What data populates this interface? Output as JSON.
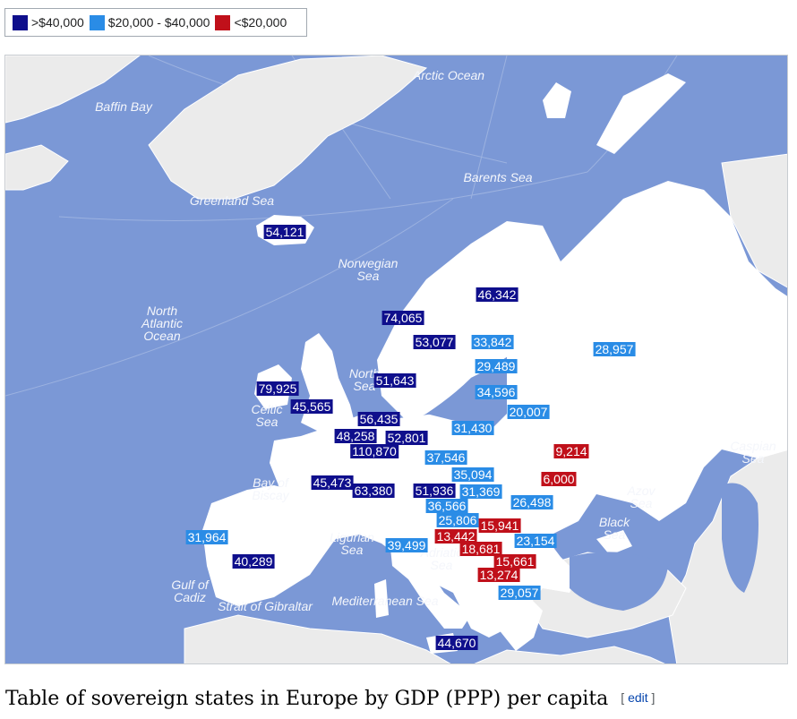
{
  "legend": {
    "items": [
      {
        "label": ">$40,000",
        "color": "#0f0f8c"
      },
      {
        "label": "$20,000 - $40,000",
        "color": "#2a8ce6"
      },
      {
        "label": "<$20,000",
        "color": "#c0101a"
      }
    ]
  },
  "colors": {
    "sea": "#7b98d6",
    "focus_land": "#ffffff",
    "other_land": "#ebebeb",
    "graticule": "#9cb2e0"
  },
  "map": {
    "seas": [
      {
        "name": "Arctic Ocean",
        "text": "Arctic Ocean"
      },
      {
        "name": "Baffin Bay",
        "text": "Baffin Bay"
      },
      {
        "name": "Greenland Sea",
        "text": "Greenland Sea"
      },
      {
        "name": "Barents Sea",
        "text": "Barents Sea"
      },
      {
        "name": "Norwegian Sea",
        "text": "Norwegian\nSea"
      },
      {
        "name": "North Atlantic Ocean",
        "text": "North\nAtlantic\nOcean"
      },
      {
        "name": "North Sea",
        "text": "North\nSea"
      },
      {
        "name": "Celtic Sea",
        "text": "Celtic\nSea"
      },
      {
        "name": "Bay of Biscay",
        "text": "Bay of\nBiscay"
      },
      {
        "name": "Ligurian Sea",
        "text": "Ligurian\nSea"
      },
      {
        "name": "Adriatic Sea",
        "text": "Adriatic\nSea"
      },
      {
        "name": "Gulf of Cadiz",
        "text": "Gulf of\nCadiz"
      },
      {
        "name": "Strait of Gibraltar",
        "text": "Strait of Gibraltar"
      },
      {
        "name": "Mediterranean Sea",
        "text": "Mediterranean Sea"
      },
      {
        "name": "Black Sea",
        "text": "Black\nSea"
      },
      {
        "name": "Azov Sea",
        "text": "Azov\nSea"
      },
      {
        "name": "Caspian Sea",
        "text": "Caspian\nSea"
      }
    ],
    "values": [
      {
        "id": "iceland",
        "value": "54,121",
        "band": "high"
      },
      {
        "id": "finland",
        "value": "46,342",
        "band": "high"
      },
      {
        "id": "norway",
        "value": "74,065",
        "band": "high"
      },
      {
        "id": "sweden",
        "value": "53,077",
        "band": "high"
      },
      {
        "id": "estonia",
        "value": "33,842",
        "band": "mid"
      },
      {
        "id": "russia",
        "value": "28,957",
        "band": "mid"
      },
      {
        "id": "latvia",
        "value": "29,489",
        "band": "mid"
      },
      {
        "id": "denmark",
        "value": "51,643",
        "band": "high"
      },
      {
        "id": "ireland",
        "value": "79,925",
        "band": "high"
      },
      {
        "id": "lithuania",
        "value": "34,596",
        "band": "mid"
      },
      {
        "id": "belarus",
        "value": "20,007",
        "band": "mid"
      },
      {
        "id": "united-kingdom",
        "value": "45,565",
        "band": "high"
      },
      {
        "id": "netherlands",
        "value": "56,435",
        "band": "high"
      },
      {
        "id": "poland",
        "value": "31,430",
        "band": "mid"
      },
      {
        "id": "belgium",
        "value": "48,258",
        "band": "high"
      },
      {
        "id": "germany",
        "value": "52,801",
        "band": "high"
      },
      {
        "id": "luxembourg",
        "value": "110,870",
        "band": "high"
      },
      {
        "id": "ukraine",
        "value": "9,214",
        "band": "low"
      },
      {
        "id": "czech-republic",
        "value": "37,546",
        "band": "mid"
      },
      {
        "id": "slovakia",
        "value": "35,094",
        "band": "mid"
      },
      {
        "id": "moldova",
        "value": "6,000",
        "band": "low"
      },
      {
        "id": "france",
        "value": "45,473",
        "band": "high"
      },
      {
        "id": "switzerland",
        "value": "63,380",
        "band": "high"
      },
      {
        "id": "austria",
        "value": "51,936",
        "band": "high"
      },
      {
        "id": "hungary",
        "value": "31,369",
        "band": "mid"
      },
      {
        "id": "romania",
        "value": "26,498",
        "band": "mid"
      },
      {
        "id": "slovenia",
        "value": "36,566",
        "band": "mid"
      },
      {
        "id": "croatia",
        "value": "25,806",
        "band": "mid"
      },
      {
        "id": "serbia",
        "value": "15,941",
        "band": "low"
      },
      {
        "id": "portugal",
        "value": "31,964",
        "band": "mid"
      },
      {
        "id": "bosnia",
        "value": "13,442",
        "band": "low"
      },
      {
        "id": "bulgaria",
        "value": "23,154",
        "band": "mid"
      },
      {
        "id": "italy",
        "value": "39,499",
        "band": "mid"
      },
      {
        "id": "montenegro",
        "value": "18,681",
        "band": "low"
      },
      {
        "id": "spain",
        "value": "40,289",
        "band": "high"
      },
      {
        "id": "north-macedonia",
        "value": "15,661",
        "band": "low"
      },
      {
        "id": "albania",
        "value": "13,274",
        "band": "low"
      },
      {
        "id": "greece",
        "value": "29,057",
        "band": "mid"
      },
      {
        "id": "malta",
        "value": "44,670",
        "band": "high"
      }
    ]
  },
  "caption": {
    "title": "Table of sovereign states in Europe by GDP (PPP) per capita",
    "edit_open": "[ ",
    "edit_label": "edit",
    "edit_close": " ]"
  }
}
